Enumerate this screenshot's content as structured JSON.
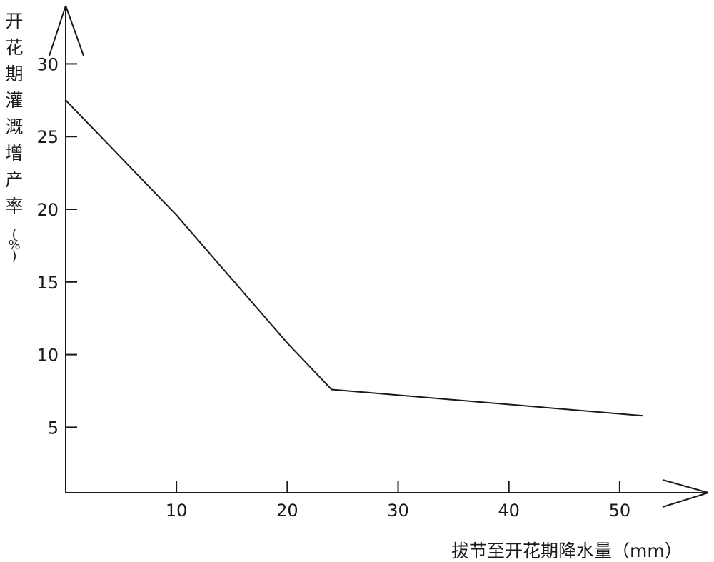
{
  "chart_data": {
    "type": "line",
    "title": "",
    "xlabel": "拔节至开花期降水量（mm）",
    "ylabel": "开花期灌溉增产率(%)",
    "xlim": [
      0,
      58
    ],
    "ylim": [
      0.5,
      34
    ],
    "x_ticks": [
      10,
      20,
      30,
      40,
      50
    ],
    "y_ticks": [
      5,
      10,
      15,
      20,
      25,
      30
    ],
    "grid": false,
    "legend": "none",
    "line_color": "#1a1a1a",
    "series": [
      {
        "x": [
          0,
          10,
          20,
          24,
          52
        ],
        "y": [
          27.5,
          19.6,
          10.8,
          7.6,
          5.8
        ]
      }
    ]
  }
}
